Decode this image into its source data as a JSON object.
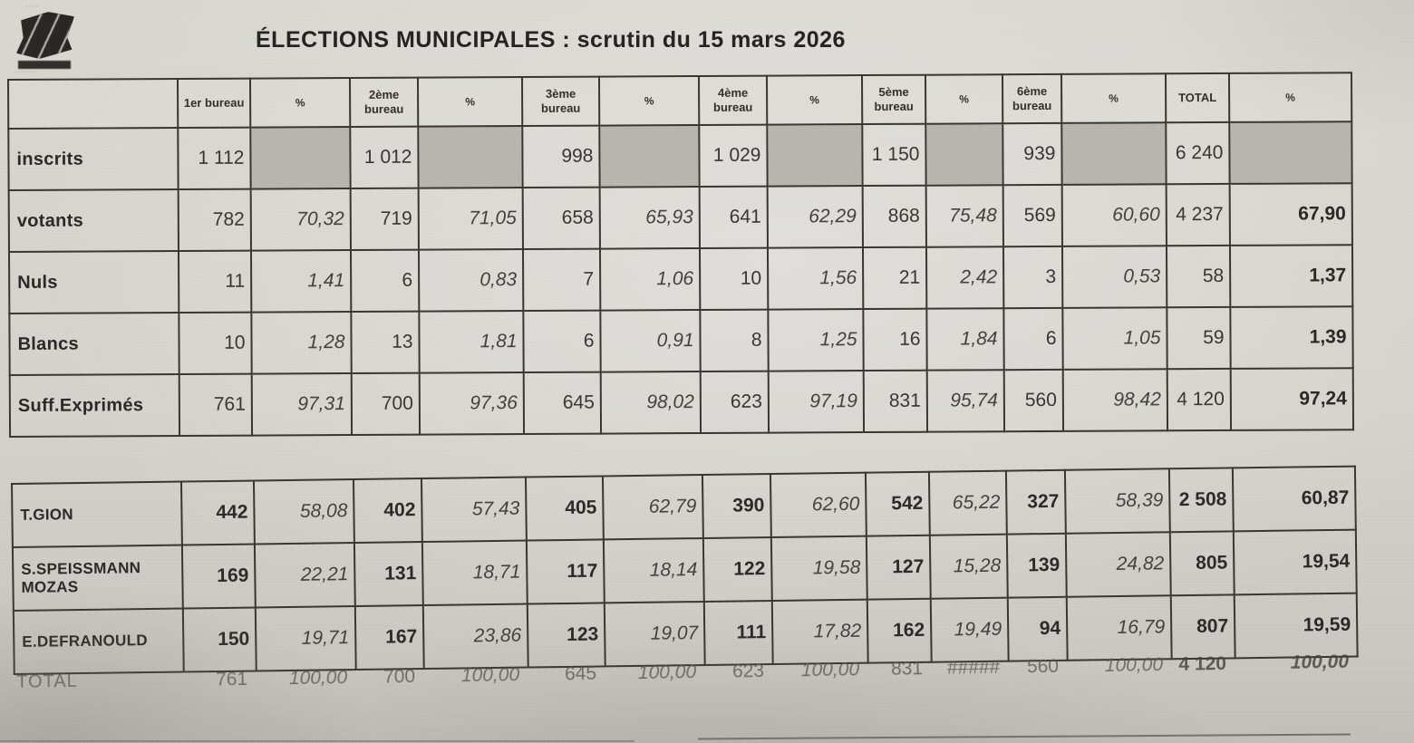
{
  "page": {
    "title": "ÉLECTIONS  MUNICIPALES  :  scrutin du 15 mars 2026"
  },
  "results_table": {
    "column_headers": [
      "",
      "1er bureau",
      "%",
      "2ème bureau",
      "%",
      "3ème bureau",
      "%",
      "4ème bureau",
      "%",
      "5ème bureau",
      "%",
      "6ème bureau",
      "%",
      "TOTAL",
      "%"
    ],
    "rows": [
      {
        "label": "inscrits",
        "shaded_pct": true,
        "values": [
          "1 112",
          "",
          "1 012",
          "",
          "998",
          "",
          "1 029",
          "",
          "1 150",
          "",
          "939",
          "",
          "6 240",
          ""
        ]
      },
      {
        "label": "votants",
        "values": [
          "782",
          "70,32",
          "719",
          "71,05",
          "658",
          "65,93",
          "641",
          "62,29",
          "868",
          "75,48",
          "569",
          "60,60",
          "4 237",
          "67,90"
        ]
      },
      {
        "label": "Nuls",
        "values": [
          "11",
          "1,41",
          "6",
          "0,83",
          "7",
          "1,06",
          "10",
          "1,56",
          "21",
          "2,42",
          "3",
          "0,53",
          "58",
          "1,37"
        ]
      },
      {
        "label": "Blancs",
        "values": [
          "10",
          "1,28",
          "13",
          "1,81",
          "6",
          "0,91",
          "8",
          "1,25",
          "16",
          "1,84",
          "6",
          "1,05",
          "59",
          "1,39"
        ]
      },
      {
        "label": "Suff.Exprimés",
        "values": [
          "761",
          "97,31",
          "700",
          "97,36",
          "645",
          "98,02",
          "623",
          "97,19",
          "831",
          "95,74",
          "560",
          "98,42",
          "4 120",
          "97,24"
        ]
      }
    ]
  },
  "candidates_table": {
    "rows": [
      {
        "label": "T.GION",
        "values": [
          "442",
          "58,08",
          "402",
          "57,43",
          "405",
          "62,79",
          "390",
          "62,60",
          "542",
          "65,22",
          "327",
          "58,39",
          "2 508",
          "60,87"
        ]
      },
      {
        "label": "S.SPEISSMANN MOZAS",
        "values": [
          "169",
          "22,21",
          "131",
          "18,71",
          "117",
          "18,14",
          "122",
          "19,58",
          "127",
          "15,28",
          "139",
          "24,82",
          "805",
          "19,54"
        ]
      },
      {
        "label": "E.DEFRANOULD",
        "values": [
          "150",
          "19,71",
          "167",
          "23,86",
          "123",
          "19,07",
          "111",
          "17,82",
          "162",
          "19,49",
          "94",
          "16,79",
          "807",
          "19,59"
        ]
      }
    ],
    "total_row": {
      "label": "TOTAL",
      "values": [
        "761",
        "100,00",
        "700",
        "100,00",
        "645",
        "100,00",
        "623",
        "100,00",
        "831",
        "#####",
        "560",
        "100,00",
        "4 120",
        "100,00"
      ]
    }
  }
}
